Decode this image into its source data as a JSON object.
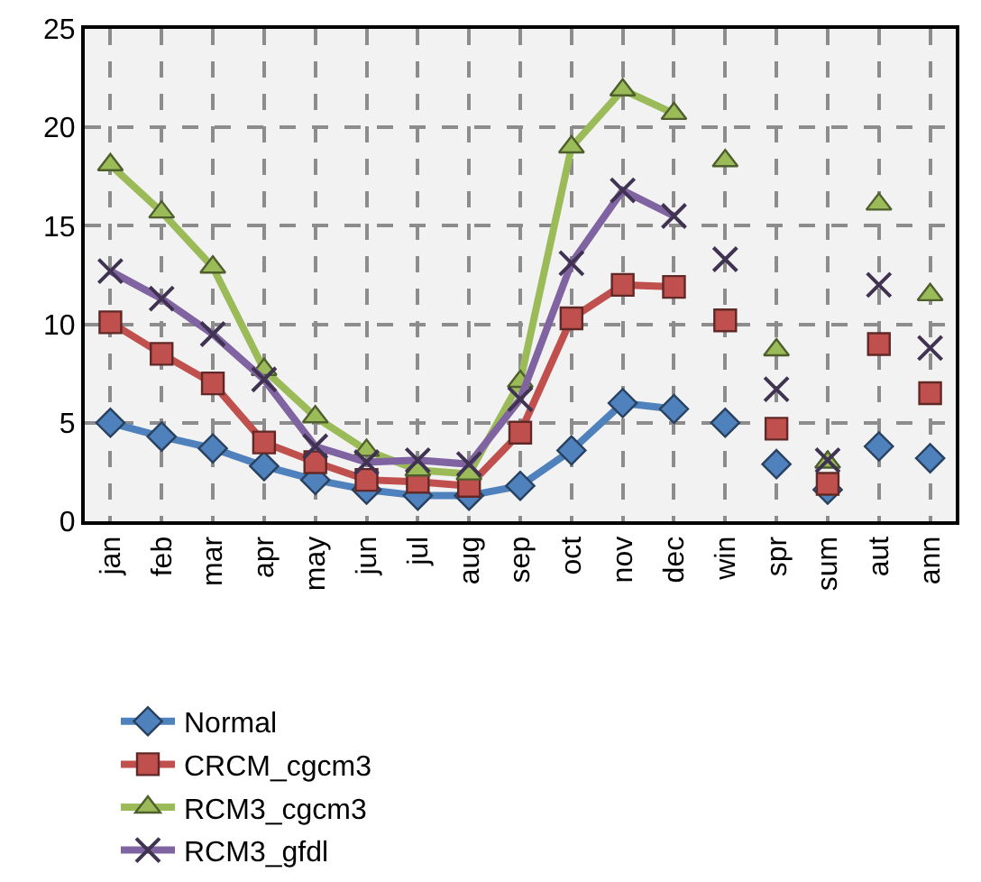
{
  "chart_data": {
    "type": "line",
    "categories": [
      "jan",
      "feb",
      "mar",
      "apr",
      "may",
      "jun",
      "jul",
      "aug",
      "sep",
      "oct",
      "nov",
      "dec",
      "win",
      "spr",
      "sum",
      "aut",
      "ann"
    ],
    "series": [
      {
        "name": "Normal",
        "color": "#4f81bd",
        "marker": "diamond",
        "values": [
          5.0,
          4.3,
          3.7,
          2.8,
          2.1,
          1.6,
          1.3,
          1.3,
          1.8,
          3.6,
          6.0,
          5.7,
          null,
          null,
          null,
          null,
          null
        ]
      },
      {
        "name": "CRCM_cgcm3",
        "color": "#c0504d",
        "marker": "square",
        "values": [
          10.1,
          8.5,
          7.0,
          4.0,
          3.0,
          2.1,
          2.0,
          1.8,
          4.5,
          10.3,
          12.0,
          11.9,
          null,
          null,
          null,
          null,
          null
        ]
      },
      {
        "name": "RCM3_cgcm3",
        "color": "#9bbb59",
        "marker": "triangle",
        "values": [
          18.1,
          15.7,
          12.9,
          7.7,
          5.3,
          3.6,
          2.6,
          2.4,
          7.1,
          19.0,
          21.9,
          20.7,
          null,
          null,
          null,
          null,
          null
        ]
      },
      {
        "name": "RCM3_gfdl",
        "color": "#8064a2",
        "marker": "cross",
        "values": [
          12.7,
          11.3,
          9.5,
          7.2,
          3.8,
          3.0,
          3.1,
          2.9,
          6.2,
          13.1,
          16.8,
          15.5,
          null,
          null,
          null,
          null,
          null
        ]
      },
      {
        "type": "scatter",
        "color": "#4f81bd",
        "marker": "diamond",
        "values": [
          null,
          null,
          null,
          null,
          null,
          null,
          null,
          null,
          null,
          null,
          null,
          null,
          5.0,
          2.9,
          1.6,
          3.8,
          3.2
        ]
      },
      {
        "type": "scatter",
        "color": "#c0504d",
        "marker": "square",
        "values": [
          null,
          null,
          null,
          null,
          null,
          null,
          null,
          null,
          null,
          null,
          null,
          null,
          10.2,
          4.7,
          1.9,
          9.0,
          6.5
        ]
      },
      {
        "type": "scatter",
        "color": "#9bbb59",
        "marker": "triangle",
        "values": [
          null,
          null,
          null,
          null,
          null,
          null,
          null,
          null,
          null,
          null,
          null,
          null,
          18.3,
          8.7,
          3.0,
          16.1,
          11.5
        ]
      },
      {
        "type": "scatter",
        "color": "#403251",
        "marker": "cross",
        "values": [
          null,
          null,
          null,
          null,
          null,
          null,
          null,
          null,
          null,
          null,
          null,
          null,
          13.3,
          6.7,
          3.1,
          12.0,
          8.8
        ]
      }
    ],
    "ylim": [
      0,
      25
    ],
    "yticks": [
      0,
      5,
      10,
      15,
      20,
      25
    ],
    "grid": true,
    "legend": "bottom",
    "line_style": "solid"
  }
}
